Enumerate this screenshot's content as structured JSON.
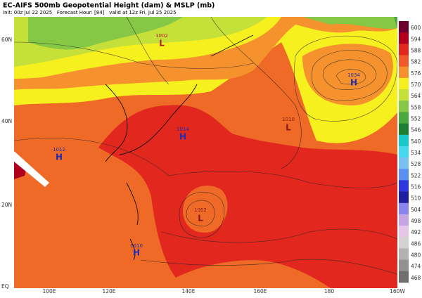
{
  "header": {
    "title": "EC-AIFS 500mb Geopotential Height (dam) & MSLP (mb)",
    "subtitle": "Init: 00z Jul 22 2025   Forecast Hour: [84]   valid at 12z Fri, Jul 25 2025"
  },
  "map": {
    "lat_labels": [
      "60N",
      "40N",
      "20N",
      "EQ"
    ],
    "lon_labels": [
      "100E",
      "120E",
      "140E",
      "160E",
      "180",
      "160W"
    ],
    "centers": [
      {
        "type": "L",
        "pressure": "1002"
      },
      {
        "type": "L",
        "pressure": "1010"
      },
      {
        "type": "H",
        "pressure": "1034"
      },
      {
        "type": "H",
        "pressure": "1012"
      },
      {
        "type": "H",
        "pressure": "1014"
      },
      {
        "type": "L",
        "pressure": "1002"
      },
      {
        "type": "H",
        "pressure": "1010"
      }
    ]
  },
  "colorbar": [
    {
      "value": 600,
      "color": "#6e0030"
    },
    {
      "value": 594,
      "color": "#b0001e"
    },
    {
      "value": 588,
      "color": "#e2281e"
    },
    {
      "value": 582,
      "color": "#ef5a28"
    },
    {
      "value": 576,
      "color": "#f5922e"
    },
    {
      "value": 570,
      "color": "#f6f01e"
    },
    {
      "value": 564,
      "color": "#c6e03a"
    },
    {
      "value": 558,
      "color": "#86c846"
    },
    {
      "value": 552,
      "color": "#4aa840"
    },
    {
      "value": 546,
      "color": "#1e7e32"
    },
    {
      "value": 540,
      "color": "#18c8c8"
    },
    {
      "value": 534,
      "color": "#46d8ec"
    },
    {
      "value": 528,
      "color": "#78c0f0"
    },
    {
      "value": 522,
      "color": "#5a8ef0"
    },
    {
      "value": 516,
      "color": "#2e36e0"
    },
    {
      "value": 510,
      "color": "#1e1e9e"
    },
    {
      "value": 504,
      "color": "#8a84ee"
    },
    {
      "value": 498,
      "color": "#c6a6e2"
    },
    {
      "value": 492,
      "color": "#e6c6e6"
    },
    {
      "value": 486,
      "color": "#d2d2d2"
    },
    {
      "value": 480,
      "color": "#b2b2b2"
    },
    {
      "value": 474,
      "color": "#929292"
    },
    {
      "value": 468,
      "color": "#707070"
    }
  ]
}
